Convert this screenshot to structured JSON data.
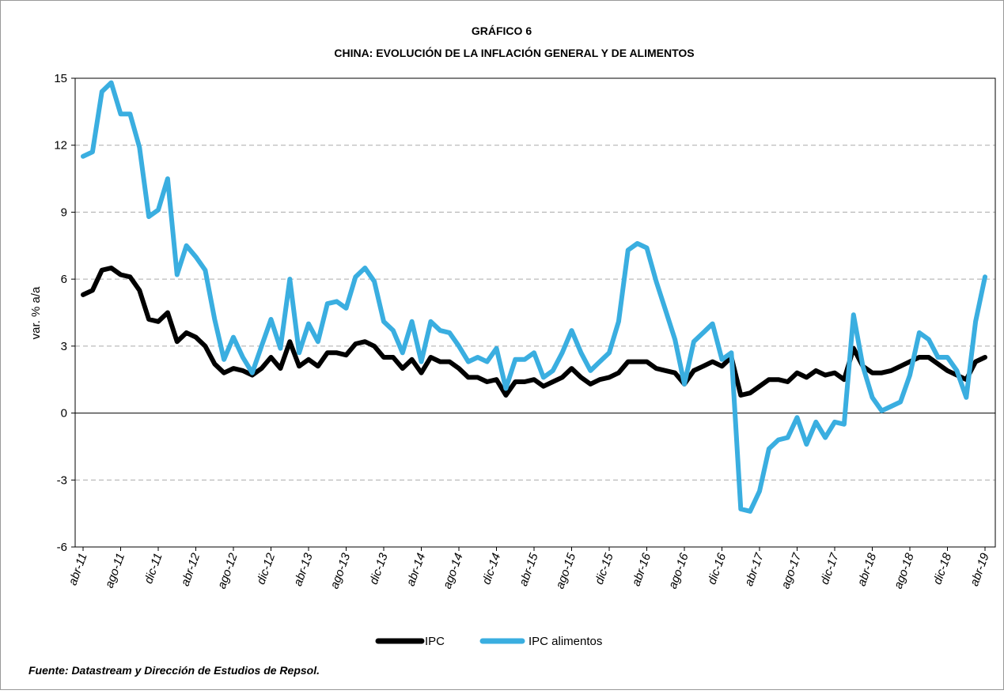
{
  "chart_data": {
    "type": "line",
    "title": "GRÁFICO 6",
    "subtitle": "CHINA: EVOLUCIÓN DE LA INFLACIÓN GENERAL Y DE ALIMENTOS",
    "y_label": "var. % a/a",
    "source": "Fuente: Datastream y Dirección de Estudios de Repsol.",
    "categories": [
      "abr-11",
      null,
      null,
      null,
      "ago-11",
      null,
      null,
      null,
      "dic-11",
      null,
      null,
      null,
      "abr-12",
      null,
      null,
      null,
      "ago-12",
      null,
      null,
      null,
      "dic-12",
      null,
      null,
      null,
      "abr-13",
      null,
      null,
      null,
      "ago-13",
      null,
      null,
      null,
      "dic-13",
      null,
      null,
      null,
      "abr-14",
      null,
      null,
      null,
      "ago-14",
      null,
      null,
      null,
      "dic-14",
      null,
      null,
      null,
      "abr-15",
      null,
      null,
      null,
      "ago-15",
      null,
      null,
      null,
      "dic-15",
      null,
      null,
      null,
      "abr-16",
      null,
      null,
      null,
      "ago-16",
      null,
      null,
      null,
      "dic-16",
      null,
      null,
      null,
      "abr-17",
      null,
      null,
      null,
      "ago-17",
      null,
      null,
      null,
      "dic-17",
      null,
      null,
      null,
      "abr-18",
      null,
      null,
      null,
      "ago-18",
      null,
      null,
      null,
      "dic-18",
      null,
      null,
      null,
      "abr-19"
    ],
    "series": [
      {
        "name": "IPC",
        "color": "#000000",
        "values": [
          5.3,
          5.5,
          6.4,
          6.5,
          6.2,
          6.1,
          5.5,
          4.2,
          4.1,
          4.5,
          3.2,
          3.6,
          3.4,
          3.0,
          2.2,
          1.8,
          2.0,
          1.9,
          1.7,
          2.0,
          2.5,
          2.0,
          3.2,
          2.1,
          2.4,
          2.1,
          2.7,
          2.7,
          2.6,
          3.1,
          3.2,
          3.0,
          2.5,
          2.5,
          2.0,
          2.4,
          1.8,
          2.5,
          2.3,
          2.3,
          2.0,
          1.6,
          1.6,
          1.4,
          1.5,
          0.8,
          1.4,
          1.4,
          1.5,
          1.2,
          1.4,
          1.6,
          2.0,
          1.6,
          1.3,
          1.5,
          1.6,
          1.8,
          2.3,
          2.3,
          2.3,
          2.0,
          1.9,
          1.8,
          1.3,
          1.9,
          2.1,
          2.3,
          2.1,
          2.5,
          0.8,
          0.9,
          1.2,
          1.5,
          1.5,
          1.4,
          1.8,
          1.6,
          1.9,
          1.7,
          1.8,
          1.5,
          2.9,
          2.1,
          1.8,
          1.8,
          1.9,
          2.1,
          2.3,
          2.5,
          2.5,
          2.2,
          1.9,
          1.7,
          1.5,
          2.3,
          2.5
        ]
      },
      {
        "name": "IPC alimentos",
        "color": "#3aaee0",
        "values": [
          11.5,
          11.7,
          14.4,
          14.8,
          13.4,
          13.4,
          11.9,
          8.8,
          9.1,
          10.5,
          6.2,
          7.5,
          7.0,
          6.4,
          4.2,
          2.4,
          3.4,
          2.5,
          1.8,
          3.0,
          4.2,
          2.9,
          6.0,
          2.7,
          4.0,
          3.2,
          4.9,
          5.0,
          4.7,
          6.1,
          6.5,
          5.9,
          4.1,
          3.7,
          2.7,
          4.1,
          2.3,
          4.1,
          3.7,
          3.6,
          3.0,
          2.3,
          2.5,
          2.3,
          2.9,
          1.1,
          2.4,
          2.4,
          2.7,
          1.6,
          1.9,
          2.7,
          3.7,
          2.7,
          1.9,
          2.3,
          2.7,
          4.1,
          7.3,
          7.6,
          7.4,
          5.9,
          4.6,
          3.3,
          1.3,
          3.2,
          3.6,
          4.0,
          2.4,
          2.7,
          -4.3,
          -4.4,
          -3.5,
          -1.6,
          -1.2,
          -1.1,
          -0.2,
          -1.4,
          -0.4,
          -1.1,
          -0.4,
          -0.5,
          4.4,
          2.1,
          0.7,
          0.1,
          0.3,
          0.5,
          1.7,
          3.6,
          3.3,
          2.5,
          2.5,
          1.9,
          0.7,
          4.1,
          6.1
        ]
      }
    ],
    "ylim": [
      -6,
      15
    ],
    "yticks": [
      -6,
      -3,
      0,
      3,
      6,
      9,
      12,
      15
    ],
    "grid": true,
    "legend": "bottom"
  }
}
